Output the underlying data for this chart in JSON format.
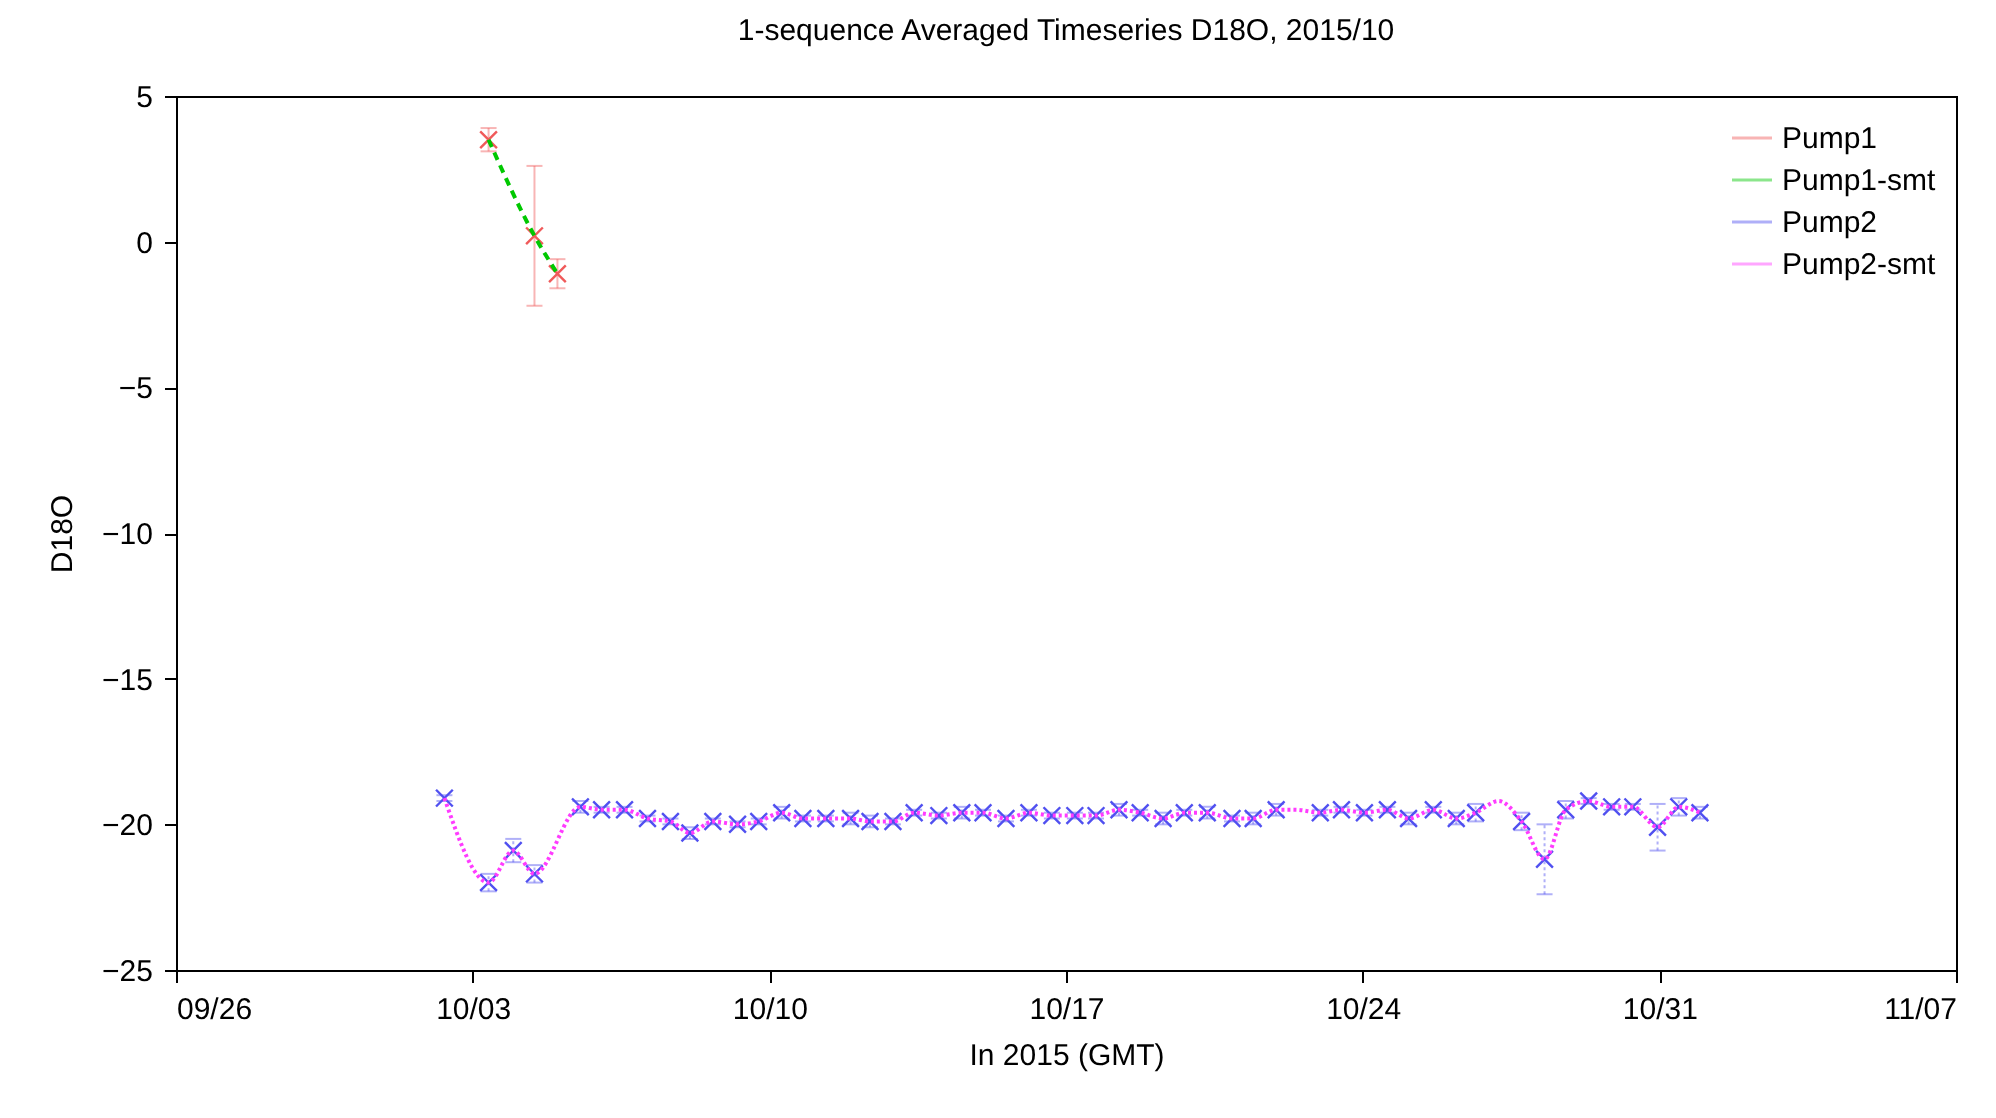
{
  "chart_data": {
    "type": "scatter",
    "title": "1-sequence Averaged Timeseries D18O, 2015/10",
    "xlabel": "In 2015 (GMT)",
    "ylabel": "D18O",
    "xlim": [
      "2015-09-26",
      "2015-11-07"
    ],
    "xticks": [
      {
        "value": "2015-09-26",
        "label": "09/26"
      },
      {
        "value": "2015-10-03",
        "label": "10/03"
      },
      {
        "value": "2015-10-10",
        "label": "10/10"
      },
      {
        "value": "2015-10-17",
        "label": "10/17"
      },
      {
        "value": "2015-10-24",
        "label": "10/24"
      },
      {
        "value": "2015-10-31",
        "label": "10/31"
      },
      {
        "value": "2015-11-07",
        "label": "11/07"
      }
    ],
    "ylim": [
      -25,
      5
    ],
    "yticks": [
      -25,
      -20,
      -15,
      -10,
      -5,
      0,
      5
    ],
    "legend": "top right",
    "marker": "cross",
    "grid": false,
    "series": [
      {
        "name": "Pump1",
        "color": "#f05a5a",
        "x": [
          "2015-10-03T09:00",
          "2015-10-04T11:00",
          "2015-10-05T00:00"
        ],
        "values": [
          3.5,
          0.2,
          -1.1
        ],
        "errors": [
          0.4,
          2.4,
          0.5
        ]
      },
      {
        "name": "Pump1-smt",
        "type": "line",
        "line_style": "dashed",
        "marker": "none",
        "color": "#00c800",
        "x": [
          "2015-10-03T09:00",
          "2015-10-04T11:00",
          "2015-10-05T00:00"
        ],
        "values": [
          3.5,
          0.2,
          -1.1
        ]
      },
      {
        "name": "Pump2",
        "color": "#5050f0",
        "x": [
          "2015-10-02T08:00",
          "2015-10-03T09:00",
          "2015-10-03T23:00",
          "2015-10-04T11:00",
          "2015-10-05T13:00",
          "2015-10-06T01:00",
          "2015-10-06T14:00",
          "2015-10-07T03:00",
          "2015-10-07T16:00",
          "2015-10-08T03:00",
          "2015-10-08T16:00",
          "2015-10-09T06:00",
          "2015-10-09T18:00",
          "2015-10-10T07:00",
          "2015-10-10T19:00",
          "2015-10-11T08:00",
          "2015-10-11T22:00",
          "2015-10-12T09:00",
          "2015-10-12T22:00",
          "2015-10-13T10:00",
          "2015-10-14T00:00",
          "2015-10-14T13:00",
          "2015-10-15T01:00",
          "2015-10-15T14:00",
          "2015-10-16T03:00",
          "2015-10-16T16:00",
          "2015-10-17T05:00",
          "2015-10-17T17:00",
          "2015-10-18T06:00",
          "2015-10-18T18:00",
          "2015-10-19T07:00",
          "2015-10-19T19:00",
          "2015-10-20T08:00",
          "2015-10-20T22:00",
          "2015-10-21T10:00",
          "2015-10-21T23:00",
          "2015-10-23T00:00",
          "2015-10-23T12:00",
          "2015-10-24T01:00",
          "2015-10-24T14:00",
          "2015-10-25T02:00",
          "2015-10-25T16:00",
          "2015-10-26T05:00",
          "2015-10-26T16:00",
          "2015-10-27T18:00",
          "2015-10-28T07:00",
          "2015-10-28T19:00",
          "2015-10-29T08:00",
          "2015-10-29T21:00",
          "2015-10-30T09:00",
          "2015-10-30T23:00",
          "2015-10-31T11:00",
          "2015-10-31T23:00"
        ],
        "values": [
          -19.1,
          -22.0,
          -20.9,
          -21.7,
          -19.4,
          -19.5,
          -19.5,
          -19.8,
          -19.9,
          -20.3,
          -19.9,
          -20.0,
          -19.9,
          -19.6,
          -19.8,
          -19.8,
          -19.8,
          -19.9,
          -19.9,
          -19.6,
          -19.7,
          -19.6,
          -19.6,
          -19.8,
          -19.6,
          -19.7,
          -19.7,
          -19.7,
          -19.5,
          -19.6,
          -19.8,
          -19.6,
          -19.6,
          -19.8,
          -19.8,
          -19.5,
          -19.6,
          -19.5,
          -19.6,
          -19.5,
          -19.8,
          -19.5,
          -19.8,
          -19.6,
          -19.9,
          -21.2,
          -19.5,
          -19.2,
          -19.4,
          -19.4,
          -20.1,
          -19.4,
          -19.6
        ],
        "errors": [
          0.1,
          0.3,
          0.4,
          0.3,
          0.2,
          0.1,
          0.1,
          0.1,
          0.1,
          0.2,
          0.1,
          0.1,
          0.1,
          0.2,
          0.1,
          0.1,
          0.2,
          0.2,
          0.1,
          0.1,
          0.1,
          0.2,
          0.1,
          0.1,
          0.1,
          0.1,
          0.1,
          0.1,
          0.2,
          0.1,
          0.2,
          0.1,
          0.2,
          0.1,
          0.2,
          0.2,
          0.1,
          0.1,
          0.1,
          0.1,
          0.2,
          0.1,
          0.2,
          0.3,
          0.3,
          1.2,
          0.3,
          0.1,
          0.1,
          0.1,
          0.8,
          0.3,
          0.2
        ]
      },
      {
        "name": "Pump2-smt",
        "type": "line",
        "line_style": "dotted",
        "marker": "none",
        "color": "#ff3cff",
        "x": [
          "2015-10-02T08:00",
          "2015-10-03T09:00",
          "2015-10-03T23:00",
          "2015-10-04T11:00",
          "2015-10-05T13:00",
          "2015-10-06T01:00",
          "2015-10-06T14:00",
          "2015-10-07T03:00",
          "2015-10-07T16:00",
          "2015-10-08T03:00",
          "2015-10-08T16:00",
          "2015-10-09T06:00",
          "2015-10-09T18:00",
          "2015-10-10T07:00",
          "2015-10-10T19:00",
          "2015-10-11T08:00",
          "2015-10-11T22:00",
          "2015-10-12T09:00",
          "2015-10-12T22:00",
          "2015-10-13T10:00",
          "2015-10-14T00:00",
          "2015-10-14T13:00",
          "2015-10-15T01:00",
          "2015-10-15T14:00",
          "2015-10-16T03:00",
          "2015-10-16T16:00",
          "2015-10-17T05:00",
          "2015-10-17T17:00",
          "2015-10-18T06:00",
          "2015-10-18T18:00",
          "2015-10-19T07:00",
          "2015-10-19T19:00",
          "2015-10-20T08:00",
          "2015-10-20T22:00",
          "2015-10-21T10:00",
          "2015-10-21T23:00",
          "2015-10-22T10:00",
          "2015-10-23T00:00",
          "2015-10-23T12:00",
          "2015-10-24T01:00",
          "2015-10-24T14:00",
          "2015-10-25T02:00",
          "2015-10-25T16:00",
          "2015-10-26T05:00",
          "2015-10-26T16:00",
          "2015-10-27T05:00",
          "2015-10-27T18:00",
          "2015-10-28T07:00",
          "2015-10-28T19:00",
          "2015-10-29T08:00",
          "2015-10-29T21:00",
          "2015-10-30T09:00",
          "2015-10-30T23:00",
          "2015-10-31T11:00",
          "2015-10-31T23:00"
        ],
        "values": [
          -19.1,
          -22.0,
          -20.9,
          -21.7,
          -19.4,
          -19.5,
          -19.5,
          -19.8,
          -19.9,
          -20.3,
          -19.9,
          -20.0,
          -19.9,
          -19.6,
          -19.8,
          -19.8,
          -19.8,
          -19.9,
          -19.9,
          -19.6,
          -19.7,
          -19.6,
          -19.6,
          -19.8,
          -19.6,
          -19.7,
          -19.7,
          -19.7,
          -19.5,
          -19.6,
          -19.8,
          -19.6,
          -19.6,
          -19.8,
          -19.8,
          -19.5,
          -19.5,
          -19.6,
          -19.5,
          -19.6,
          -19.5,
          -19.8,
          -19.5,
          -19.8,
          -19.6,
          -19.2,
          -19.9,
          -21.2,
          -19.5,
          -19.2,
          -19.4,
          -19.4,
          -20.1,
          -19.4,
          -19.6
        ]
      }
    ]
  }
}
